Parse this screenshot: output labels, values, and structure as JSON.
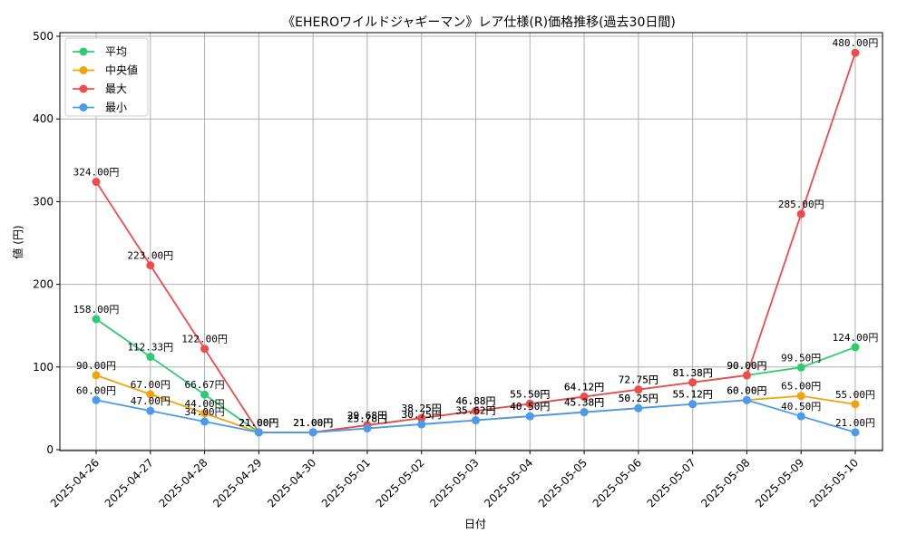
{
  "chart_data": {
    "type": "line",
    "title": "《EHEROワイルドジャギーマン》レア仕様(R)価格推移(過去30日間)",
    "xlabel": "日付",
    "ylabel": "値 (円)",
    "ylim": [
      0,
      500
    ],
    "yticks": [
      0,
      100,
      200,
      300,
      400,
      500
    ],
    "grid": true,
    "legend_position": "top-left",
    "value_suffix": "円",
    "categories": [
      "2025-04-26",
      "2025-04-27",
      "2025-04-28",
      "2025-04-29",
      "2025-04-30",
      "2025-05-01",
      "2025-05-02",
      "2025-05-03",
      "2025-05-04",
      "2025-05-05",
      "2025-05-06",
      "2025-05-07",
      "2025-05-08",
      "2025-05-09",
      "2025-05-10"
    ],
    "series": [
      {
        "name": "平均",
        "color": "#2ecc71",
        "values": [
          158.0,
          112.33,
          66.67,
          21.0,
          21.0,
          29.68,
          38.25,
          46.88,
          55.5,
          64.12,
          72.75,
          81.38,
          90.0,
          99.5,
          124.0
        ]
      },
      {
        "name": "中央値",
        "color": "#f0a30a",
        "values": [
          90.0,
          67.0,
          44.0,
          21.0,
          21.0,
          25.78,
          30.75,
          35.62,
          40.5,
          45.38,
          50.25,
          55.12,
          60.0,
          65.0,
          55.0
        ]
      },
      {
        "name": "最大",
        "color": "#ef4b4b",
        "values": [
          324.0,
          223.0,
          122.0,
          21.0,
          21.0,
          29.68,
          38.25,
          46.88,
          55.5,
          64.12,
          72.75,
          81.38,
          90.0,
          285.0,
          480.0
        ]
      },
      {
        "name": "最小",
        "color": "#4a9af0",
        "values": [
          60.0,
          47.0,
          34.0,
          21.0,
          21.0,
          25.78,
          30.75,
          35.62,
          40.5,
          45.38,
          50.25,
          55.12,
          60.0,
          40.5,
          21.0
        ]
      }
    ]
  }
}
